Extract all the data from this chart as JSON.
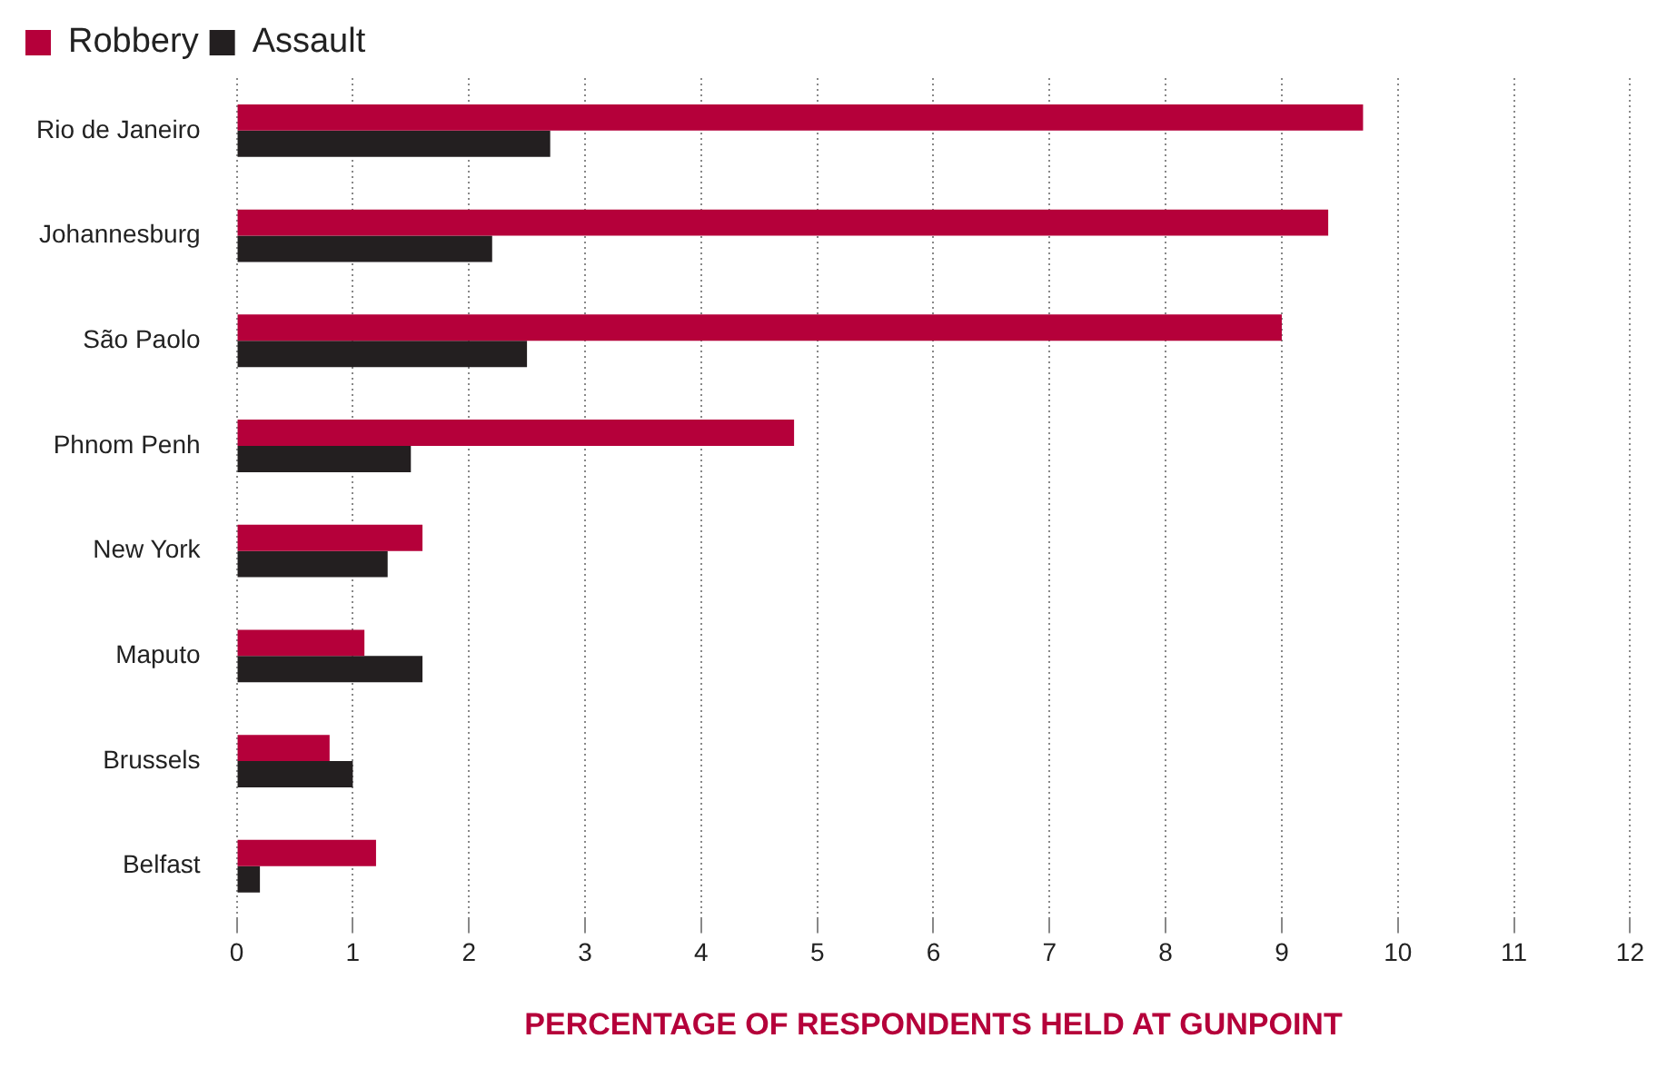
{
  "chart_data": {
    "type": "bar",
    "orientation": "horizontal",
    "xlabel": "PERCENTAGE OF RESPONDENTS HELD AT GUNPOINT",
    "categories": [
      "Rio de Janeiro",
      "Johannesburg",
      "São Paolo",
      "Phnom Penh",
      "New York",
      "Maputo",
      "Brussels",
      "Belfast"
    ],
    "series": [
      {
        "name": "Robbery",
        "color": "#b5003a",
        "values": [
          9.7,
          9.4,
          9.0,
          4.8,
          1.6,
          1.1,
          0.8,
          1.2
        ]
      },
      {
        "name": "Assault",
        "color": "#231f20",
        "values": [
          2.7,
          2.2,
          2.5,
          1.5,
          1.3,
          1.6,
          1.0,
          0.2
        ]
      }
    ],
    "xlim": [
      0,
      12
    ],
    "xticks": [
      0,
      1,
      2,
      3,
      4,
      5,
      6,
      7,
      8,
      9,
      10,
      11,
      12
    ],
    "grid": "x",
    "legend": "top left"
  }
}
